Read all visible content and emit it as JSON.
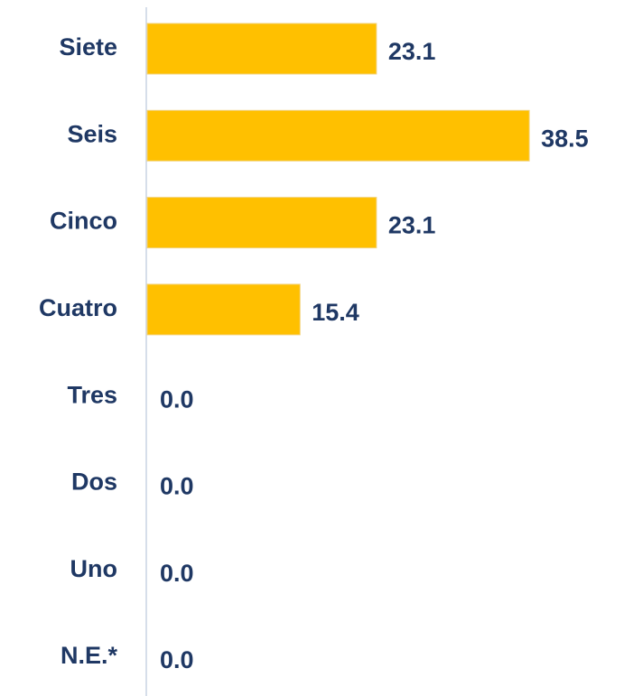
{
  "chart_data": {
    "type": "barh",
    "categories": [
      "Siete",
      "Seis",
      "Cinco",
      "Cuatro",
      "Tres",
      "Dos",
      "Uno",
      "N.E.*"
    ],
    "values": [
      23.1,
      38.5,
      23.1,
      15.4,
      0,
      0,
      0,
      0
    ],
    "value_labels": [
      "23.1",
      "38.5",
      "23.1",
      "15.4",
      "0.0",
      "0.0",
      "0.0",
      "0.0"
    ],
    "color": "#ffc000"
  }
}
